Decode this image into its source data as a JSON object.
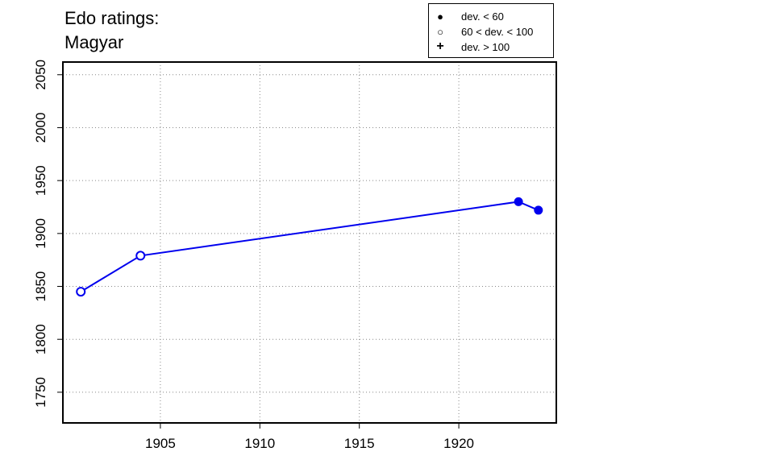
{
  "chart_data": {
    "type": "line",
    "title": [
      "Edo ratings:",
      "Magyar"
    ],
    "xlabel": "",
    "ylabel": "",
    "xlim": [
      1900.1,
      1924.9
    ],
    "ylim": [
      1721,
      2062
    ],
    "x_ticks": [
      1905,
      1910,
      1915,
      1920
    ],
    "y_ticks": [
      1750,
      1800,
      1850,
      1900,
      1950,
      2000,
      2050
    ],
    "grid": true,
    "series": [
      {
        "color": "#0000ee",
        "points": [
          {
            "x": 1901,
            "y": 1845,
            "dev": "60 < dev. < 100"
          },
          {
            "x": 1904,
            "y": 1879,
            "dev": "60 < dev. < 100"
          },
          {
            "x": 1923,
            "y": 1930,
            "dev": "dev. < 60"
          },
          {
            "x": 1924,
            "y": 1922,
            "dev": "dev. < 60"
          }
        ]
      }
    ],
    "legend": {
      "position": "top-right",
      "entries": [
        {
          "symbol": "filled-circle",
          "label": "dev. < 60"
        },
        {
          "symbol": "open-circle",
          "label": "60 < dev. < 100"
        },
        {
          "symbol": "plus",
          "label": "dev. > 100"
        }
      ]
    }
  }
}
